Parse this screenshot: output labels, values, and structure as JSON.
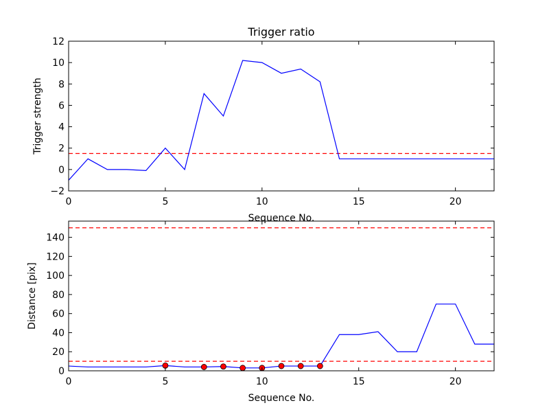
{
  "chart_data": [
    {
      "type": "line",
      "title": "Trigger ratio",
      "xlabel": "Sequence No.",
      "ylabel": "Trigger strength",
      "xlim": [
        0,
        22
      ],
      "ylim": [
        -2,
        12
      ],
      "xticks": [
        0,
        5,
        10,
        15,
        20
      ],
      "yticks": [
        -2,
        0,
        2,
        4,
        6,
        8,
        10,
        12
      ],
      "grid": false,
      "colors": {
        "line": "#0000ff",
        "threshold": "#ff0000"
      },
      "series": [
        {
          "x": [
            0,
            1,
            2,
            3,
            4,
            5,
            6,
            7,
            8,
            9,
            10,
            11,
            12,
            13,
            14,
            15,
            16,
            17,
            18,
            19,
            20,
            21,
            22
          ],
          "values": [
            -1,
            1,
            0,
            0,
            -0.1,
            2,
            0,
            7.1,
            5,
            10.2,
            10,
            9,
            9.4,
            8.2,
            1,
            1,
            1,
            1,
            1,
            1,
            1,
            1,
            1
          ]
        }
      ],
      "hlines": [
        1.5
      ]
    },
    {
      "type": "line",
      "title": "",
      "xlabel": "Sequence No.",
      "ylabel": "Distance [pix]",
      "xlim": [
        0,
        22
      ],
      "ylim": [
        0,
        157
      ],
      "xticks": [
        0,
        5,
        10,
        15,
        20
      ],
      "yticks": [
        0,
        20,
        40,
        60,
        80,
        100,
        120,
        140
      ],
      "grid": false,
      "colors": {
        "line": "#0000ff",
        "threshold": "#ff0000",
        "marker": "#ff0000"
      },
      "series": [
        {
          "x": [
            0,
            1,
            2,
            3,
            4,
            5,
            6,
            7,
            8,
            9,
            10,
            11,
            12,
            13,
            14,
            15,
            16,
            17,
            18,
            19,
            20,
            21,
            22
          ],
          "values": [
            5,
            4,
            4,
            4,
            4,
            5.5,
            4,
            4,
            4.5,
            3,
            3,
            5,
            5,
            5,
            38,
            38,
            41,
            20,
            20,
            70,
            70,
            28,
            28
          ]
        }
      ],
      "markers": {
        "x": [
          5,
          7,
          8,
          9,
          10,
          11,
          12,
          13
        ],
        "values": [
          5.5,
          4,
          4.5,
          3,
          3,
          5,
          5,
          5
        ]
      },
      "hlines": [
        150,
        10
      ]
    }
  ]
}
